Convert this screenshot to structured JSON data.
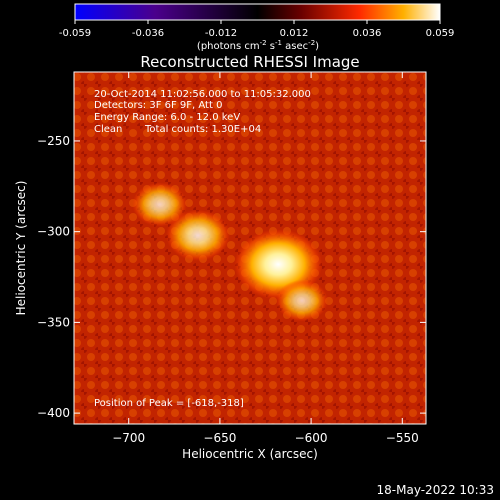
{
  "colorbar": {
    "ticks": [
      "-0.059",
      "-0.036",
      "-0.012",
      "0.012",
      "0.036",
      "0.059"
    ],
    "unit_label": "(photons cm",
    "unit_sup1": "-2",
    "unit_mid": " s",
    "unit_sup2": "-1",
    "unit_mid2": " asec",
    "unit_sup3": "-2",
    "unit_end": ")",
    "colors": [
      "#0000ff",
      "#4b008c",
      "#000000",
      "#6a0000",
      "#ff2a00",
      "#ffb000",
      "#ffffff"
    ]
  },
  "chart_data": {
    "type": "heatmap",
    "title": "Reconstructed RHESSI Image",
    "xlabel": "Heliocentric X (arcsec)",
    "ylabel": "Heliocentric Y (arcsec)",
    "xticks": [
      "-700",
      "-650",
      "-600",
      "-550"
    ],
    "xtick_values": [
      -700,
      -650,
      -600,
      -550
    ],
    "yticks": [
      "-250",
      "-300",
      "-350",
      "-400"
    ],
    "ytick_values": [
      -250,
      -300,
      -350,
      -400
    ],
    "xlim": [
      -730,
      -537
    ],
    "ylim": [
      -406,
      -212
    ],
    "annotations": {
      "line1": "20-Oct-2014 11:02:56.000 to 11:05:32.000",
      "line2": "Detectors: 3F 6F 9F, Att 0",
      "line3": "Energy Range: 6.0 - 12.0 keV",
      "line4a": "Clean",
      "line4b": "Total counts: 1.30E+04",
      "peak": "Position of Peak = [-618,-318]"
    },
    "sources": [
      {
        "x": -618,
        "y": -318,
        "intensity": 1.0
      },
      {
        "x": -662,
        "y": -302,
        "intensity": 0.6
      },
      {
        "x": -683,
        "y": -285,
        "intensity": 0.45
      },
      {
        "x": -605,
        "y": -338,
        "intensity": 0.4
      }
    ]
  },
  "footer": {
    "date": "18-May-2022 10:33"
  }
}
